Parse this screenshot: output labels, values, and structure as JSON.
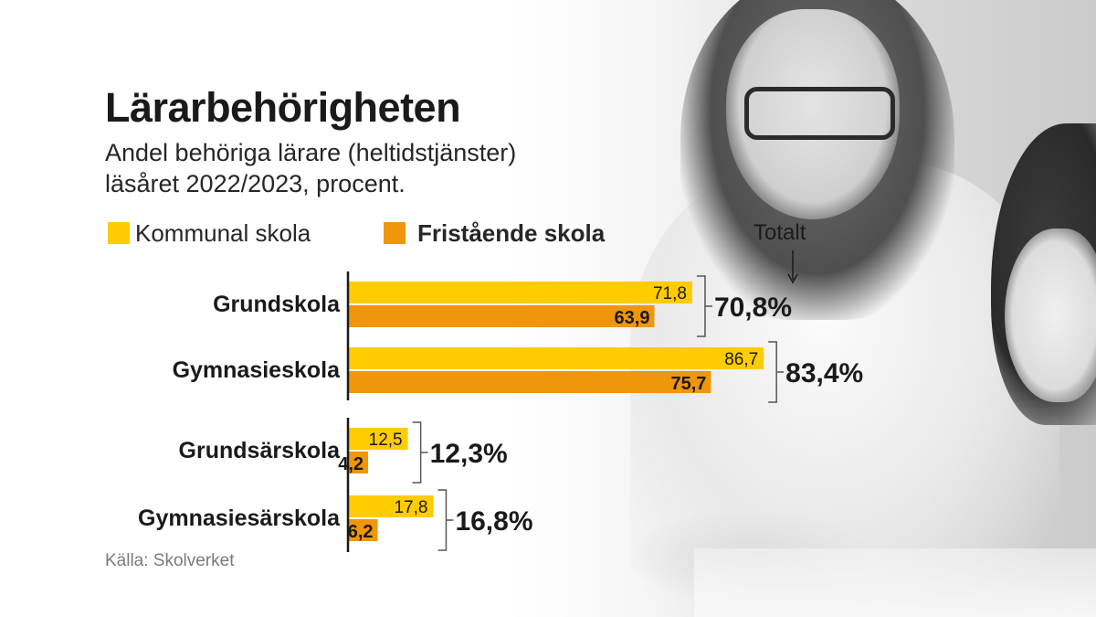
{
  "title": "Lärarbehörigheten",
  "subtitle": {
    "line1": "Andel behöriga lärare (heltidstjänster)",
    "line2": "läsåret 2022/2023, procent."
  },
  "legend": {
    "kommunal": "Kommunal skola",
    "fristaende": "Fristående skola"
  },
  "totalt_label": "Totalt",
  "source": "Källa: Skolverket",
  "colors": {
    "kommunal": "#FFCC00",
    "fristaende": "#F0960A",
    "text": "#1a1a1a"
  },
  "chart_data": {
    "type": "bar",
    "orientation": "horizontal",
    "title": "Lärarbehörigheten",
    "subtitle": "Andel behöriga lärare (heltidstjänster) läsåret 2022/2023, procent.",
    "categories": [
      "Grundskola",
      "Gymnasieskola",
      "Grundsärskola",
      "Gymnasiesärskola"
    ],
    "series": [
      {
        "name": "Kommunal skola",
        "values": [
          71.8,
          86.7,
          12.5,
          17.8
        ]
      },
      {
        "name": "Fristående skola",
        "values": [
          63.9,
          75.7,
          4.2,
          6.2
        ]
      }
    ],
    "value_labels": {
      "kommunal": [
        "71,8",
        "86,7",
        "12,5",
        "17,8"
      ],
      "fristaende": [
        "63,9",
        "75,7",
        "4,2",
        "6,2"
      ]
    },
    "totals": [
      70.8,
      83.4,
      12.3,
      16.8
    ],
    "total_labels": [
      "70,8%",
      "83,4%",
      "12,3%",
      "16,8%"
    ],
    "xlim": [
      0,
      100
    ],
    "legend_position": "top"
  }
}
